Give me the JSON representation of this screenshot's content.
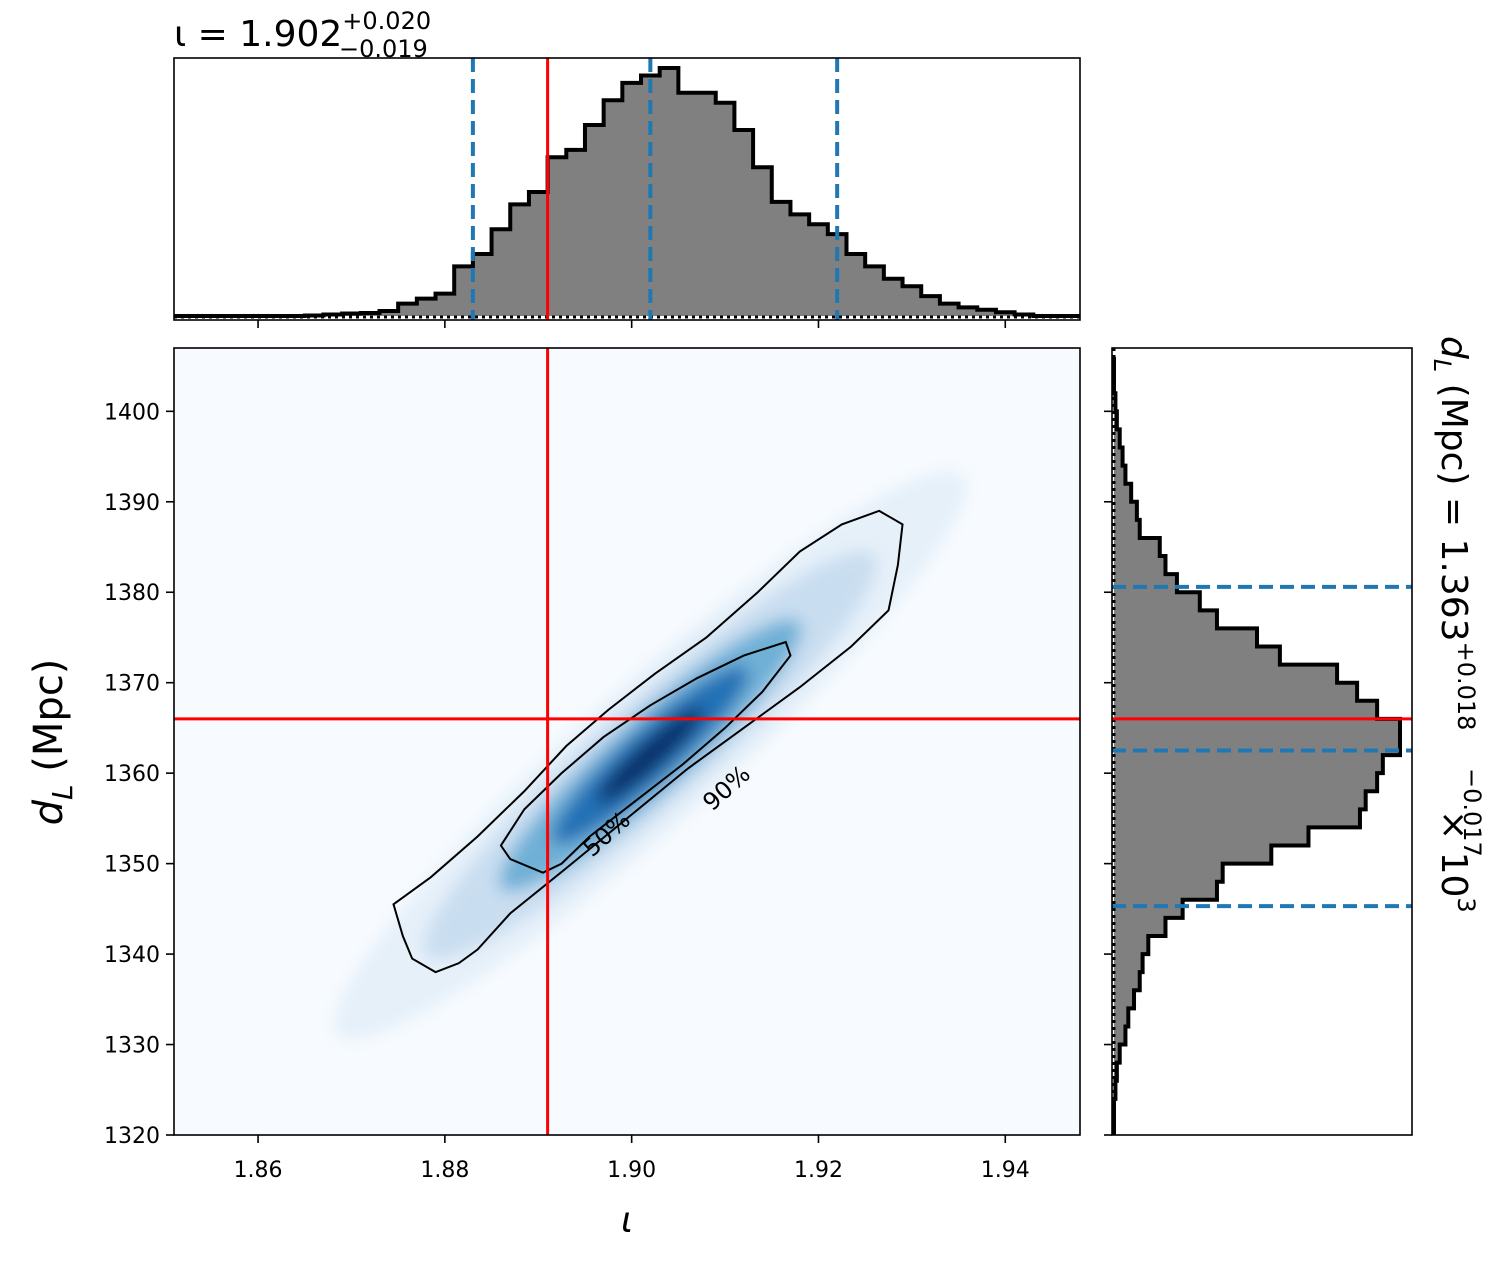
{
  "chart_data": [
    {
      "type": "histogram",
      "panel": "top-marginal",
      "title_prefix": "ι = 1.902",
      "title_sup": "+0.020",
      "title_sub": "−0.019",
      "xlim": [
        1.851,
        1.948
      ],
      "xticks": [
        1.86,
        1.88,
        1.9,
        1.92,
        1.94
      ],
      "truth_x": 1.891,
      "quantiles_x": [
        1.883,
        1.902,
        1.922
      ],
      "bin_edges": [
        1.851,
        1.853,
        1.855,
        1.857,
        1.859,
        1.861,
        1.863,
        1.865,
        1.867,
        1.869,
        1.871,
        1.873,
        1.875,
        1.877,
        1.879,
        1.881,
        1.883,
        1.885,
        1.887,
        1.889,
        1.891,
        1.893,
        1.895,
        1.897,
        1.899,
        1.901,
        1.903,
        1.905,
        1.907,
        1.909,
        1.911,
        1.913,
        1.915,
        1.917,
        1.919,
        1.921,
        1.923,
        1.925,
        1.927,
        1.929,
        1.931,
        1.933,
        1.935,
        1.937,
        1.939,
        1.941,
        1.943,
        1.945,
        1.948
      ],
      "density": [
        0,
        0,
        0,
        0,
        0,
        0,
        0,
        0.002,
        0.006,
        0.01,
        0.012,
        0.02,
        0.05,
        0.07,
        0.09,
        0.2,
        0.25,
        0.35,
        0.45,
        0.5,
        0.64,
        0.67,
        0.77,
        0.87,
        0.94,
        0.97,
        1.0,
        0.9,
        0.9,
        0.86,
        0.75,
        0.6,
        0.46,
        0.41,
        0.37,
        0.33,
        0.25,
        0.2,
        0.15,
        0.12,
        0.08,
        0.05,
        0.035,
        0.025,
        0.015,
        0.006,
        0,
        0
      ]
    },
    {
      "type": "heatmap",
      "panel": "joint",
      "xlabel": "ι",
      "ylabel_main": "d",
      "ylabel_sub": "L",
      "ylabel_rest": " (Mpc)",
      "xlim": [
        1.851,
        1.948
      ],
      "ylim": [
        1320,
        1407
      ],
      "xticks": [
        1.86,
        1.88,
        1.9,
        1.92,
        1.94
      ],
      "yticks": [
        1320,
        1330,
        1340,
        1350,
        1360,
        1370,
        1380,
        1390,
        1400
      ],
      "truth": {
        "x": 1.891,
        "y": 1366
      },
      "contour_labels": [
        "50%",
        "90%"
      ],
      "contour_50": [
        [
          1.8905,
          1349
        ],
        [
          1.887,
          1350.5
        ],
        [
          1.886,
          1352
        ],
        [
          1.8885,
          1356
        ],
        [
          1.8925,
          1360
        ],
        [
          1.897,
          1364
        ],
        [
          1.902,
          1367.5
        ],
        [
          1.907,
          1370.5
        ],
        [
          1.912,
          1373
        ],
        [
          1.9165,
          1374.5
        ],
        [
          1.917,
          1373
        ],
        [
          1.914,
          1369
        ],
        [
          1.91,
          1365
        ],
        [
          1.9055,
          1361
        ],
        [
          1.9005,
          1357
        ],
        [
          1.8955,
          1353
        ],
        [
          1.8925,
          1350
        ],
        [
          1.8905,
          1349
        ]
      ],
      "contour_90": [
        [
          1.879,
          1338
        ],
        [
          1.8765,
          1339.5
        ],
        [
          1.8755,
          1342
        ],
        [
          1.8745,
          1345.5
        ],
        [
          1.8785,
          1348.5
        ],
        [
          1.8835,
          1353
        ],
        [
          1.8885,
          1358
        ],
        [
          1.893,
          1363
        ],
        [
          1.8975,
          1367
        ],
        [
          1.9025,
          1371
        ],
        [
          1.908,
          1375
        ],
        [
          1.9135,
          1380
        ],
        [
          1.918,
          1384.5
        ],
        [
          1.9225,
          1387.5
        ],
        [
          1.9265,
          1389
        ],
        [
          1.929,
          1387.5
        ],
        [
          1.9285,
          1383
        ],
        [
          1.9275,
          1378
        ],
        [
          1.9235,
          1374
        ],
        [
          1.918,
          1369.5
        ],
        [
          1.912,
          1365
        ],
        [
          1.906,
          1360.5
        ],
        [
          1.8995,
          1355
        ],
        [
          1.893,
          1349.5
        ],
        [
          1.887,
          1344.5
        ],
        [
          1.8835,
          1340.5
        ],
        [
          1.8815,
          1339
        ],
        [
          1.879,
          1338
        ]
      ]
    },
    {
      "type": "histogram",
      "panel": "right-marginal",
      "orientation": "horizontal",
      "title_main": "d",
      "title_sub_L": "L",
      "title_rest": " (Mpc) = 1.363",
      "title_sup": "+0.018",
      "title_sub": "−0.017",
      "title_tail": " × 10",
      "title_exp": "3",
      "ylim": [
        1320,
        1407
      ],
      "truth_y": 1366,
      "quantiles_y": [
        1345.3,
        1362.5,
        1380.6
      ],
      "bin_edges": [
        1320,
        1322,
        1324,
        1326,
        1328,
        1330,
        1332,
        1334,
        1336,
        1338,
        1340,
        1342,
        1344,
        1346,
        1348,
        1350,
        1352,
        1354,
        1356,
        1358,
        1360,
        1362,
        1364,
        1366,
        1368,
        1370,
        1372,
        1374,
        1376,
        1378,
        1380,
        1382,
        1384,
        1386,
        1388,
        1390,
        1392,
        1394,
        1396,
        1398,
        1400,
        1402,
        1404,
        1406
      ],
      "density": [
        0,
        0,
        0.005,
        0.01,
        0.02,
        0.04,
        0.05,
        0.07,
        0.09,
        0.1,
        0.12,
        0.18,
        0.24,
        0.36,
        0.38,
        0.55,
        0.68,
        0.86,
        0.88,
        0.92,
        0.94,
        1.0,
        1.0,
        0.92,
        0.85,
        0.78,
        0.58,
        0.5,
        0.36,
        0.3,
        0.22,
        0.18,
        0.16,
        0.09,
        0.08,
        0.06,
        0.04,
        0.03,
        0.02,
        0.01,
        0.005,
        0,
        0
      ]
    }
  ]
}
